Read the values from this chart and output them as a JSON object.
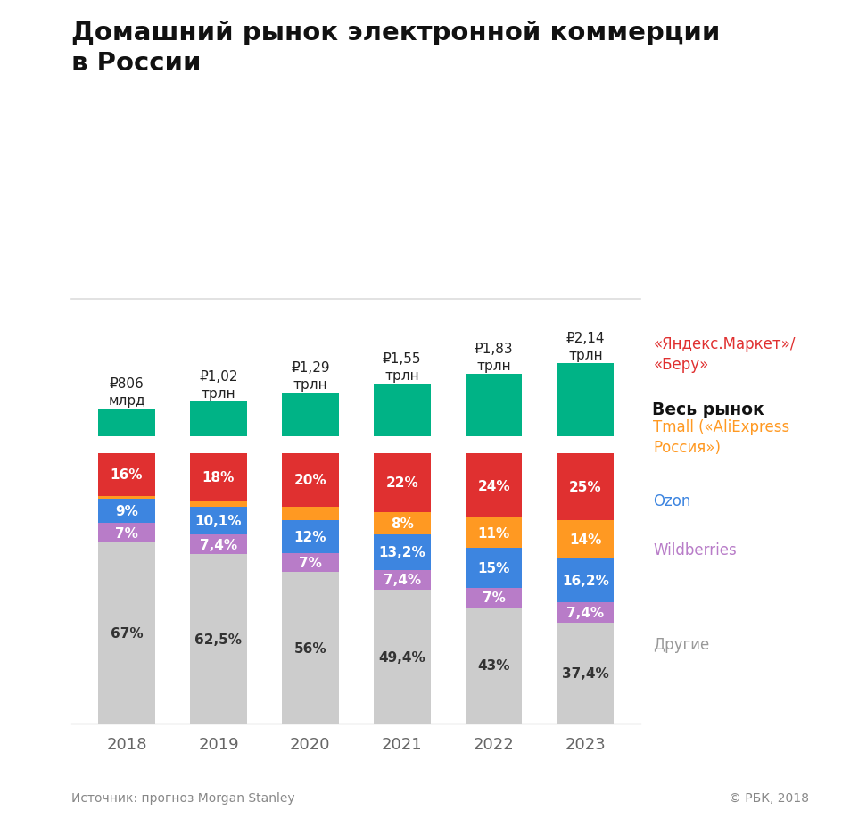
{
  "title": "Домашний рынок электронной коммерции\nв России",
  "years": [
    "2018",
    "2019",
    "2020",
    "2021",
    "2022",
    "2023"
  ],
  "market_labels": [
    "₽806\nмлрд",
    "₽1,02\nтрлн",
    "₽1,29\nтрлн",
    "₽1,55\nтрлн",
    "₽1,83\nтрлн",
    "₽2,14\nтрлн"
  ],
  "market_values": [
    806,
    1020,
    1290,
    1550,
    1830,
    2140
  ],
  "market_color": "#00b386",
  "stacked_data": {
    "Другие": [
      67.0,
      62.5,
      56.0,
      49.4,
      43.0,
      37.4
    ],
    "Wildberries": [
      7.0,
      7.4,
      7.0,
      7.4,
      7.0,
      7.4
    ],
    "Ozon": [
      9.0,
      10.1,
      12.0,
      13.2,
      15.0,
      16.2
    ],
    "Tmall": [
      1.0,
      2.0,
      5.0,
      8.0,
      11.0,
      14.0
    ],
    "Яндекс": [
      16.0,
      18.0,
      20.0,
      22.0,
      24.0,
      25.0
    ]
  },
  "stack_colors": {
    "Другие": "#cccccc",
    "Wildberries": "#b87cc8",
    "Ozon": "#3d85e0",
    "Tmall": "#ff9922",
    "Яндекс": "#e03030"
  },
  "stack_labels_pct": {
    "Другие": [
      "67%",
      "62,5%",
      "56%",
      "49,4%",
      "43%",
      "37,4%"
    ],
    "Wildberries": [
      "7%",
      "7,4%",
      "7%",
      "7,4%",
      "7%",
      "7,4%"
    ],
    "Ozon": [
      "9%",
      "10,1%",
      "12%",
      "13,2%",
      "15%",
      "16,2%"
    ],
    "Tmall": [
      "",
      "",
      "",
      "8%",
      "11%",
      "14%"
    ],
    "Яндекс": [
      "16%",
      "18%",
      "20%",
      "22%",
      "24%",
      "25%"
    ]
  },
  "tmall_show_threshold": 6,
  "legend_items": [
    {
      "«Яндекс.Маркет»/\n«Беру»": "#e03030"
    },
    {
      "Tmall («AliExpress\nРоссия»)": "#ff9922"
    },
    {
      "Ozon": "#3d85e0"
    },
    {
      "Wildberries": "#b87cc8"
    },
    {
      "Другие": "#999999"
    }
  ],
  "bg_color": "#ffffff",
  "source_text": "Источник: прогноз Morgan Stanley",
  "copyright_text": "© РБК, 2018"
}
